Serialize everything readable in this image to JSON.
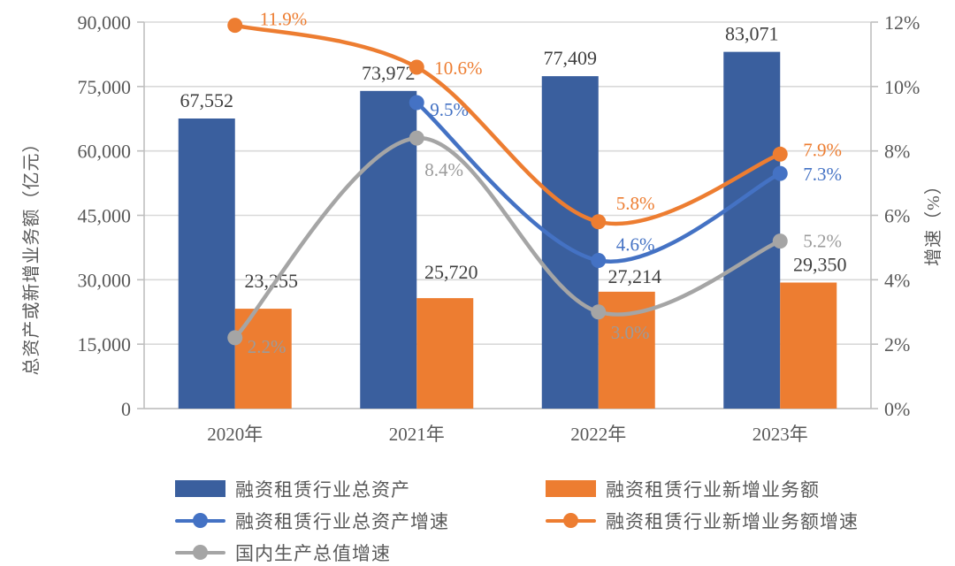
{
  "chart_data": {
    "type": "combo-bar-line",
    "categories": [
      "2020年",
      "2021年",
      "2022年",
      "2023年"
    ],
    "bar_series": [
      {
        "name": "融资租赁行业总资产",
        "color": "#3A5F9E",
        "values": [
          67552,
          73972,
          77409,
          83071
        ],
        "labels": [
          "67,552",
          "73,972",
          "77,409",
          "83,071"
        ],
        "label_color": "#3F3F3F"
      },
      {
        "name": "融资租赁行业新增业务额",
        "color": "#ED7D31",
        "values": [
          23255,
          25720,
          27214,
          29350
        ],
        "labels": [
          "23,255",
          "25,720",
          "27,214",
          "29,350"
        ],
        "label_color": "#3F3F3F"
      }
    ],
    "line_series": [
      {
        "name": "融资租赁行业总资产增速",
        "color": "#4472C4",
        "values": [
          null,
          9.5,
          4.6,
          7.3
        ],
        "labels": [
          "",
          "9.5%",
          "4.6%",
          "7.3%"
        ],
        "label_color": "#4472C4"
      },
      {
        "name": "融资租赁行业新增业务额增速",
        "color": "#ED7D31",
        "values": [
          11.9,
          10.6,
          5.8,
          7.9
        ],
        "labels": [
          "11.9%",
          "10.6%",
          "5.8%",
          "7.9%"
        ],
        "label_color": "#ED7D31"
      },
      {
        "name": "国内生产总值增速",
        "color": "#A5A5A5",
        "values": [
          2.2,
          8.4,
          3.0,
          5.2
        ],
        "labels": [
          "2.2%",
          "8.4%",
          "3.0%",
          "5.2%"
        ],
        "label_color": "#9B9B9B"
      }
    ],
    "left_axis": {
      "title": "总资产或新增业务额（亿元）",
      "min": 0,
      "max": 90000,
      "step": 15000,
      "tick_labels": [
        "0",
        "15,000",
        "30,000",
        "45,000",
        "60,000",
        "75,000",
        "90,000"
      ]
    },
    "right_axis": {
      "title": "增速（%）",
      "min": 0,
      "max": 12,
      "step": 2,
      "tick_labels": [
        "0%",
        "2%",
        "4%",
        "6%",
        "8%",
        "10%",
        "12%"
      ]
    },
    "grid": true,
    "legend_position": "bottom",
    "legend_columns": [
      {
        "items": [
          {
            "swatch": "bar",
            "color": "#3A5F9E",
            "label": "融资租赁行业总资产"
          },
          {
            "swatch": "line",
            "color": "#4472C4",
            "label": "融资租赁行业总资产增速"
          },
          {
            "swatch": "line",
            "color": "#A5A5A5",
            "label": "国内生产总值增速"
          }
        ]
      },
      {
        "items": [
          {
            "swatch": "bar",
            "color": "#ED7D31",
            "label": "融资租赁行业新增业务额"
          },
          {
            "swatch": "line",
            "color": "#ED7D31",
            "label": "融资租赁行业新增业务额增速"
          }
        ]
      }
    ],
    "colors": {
      "gridline": "#D9D9D9",
      "axis_line": "#BFBFBF",
      "tick_text": "#595959"
    }
  }
}
